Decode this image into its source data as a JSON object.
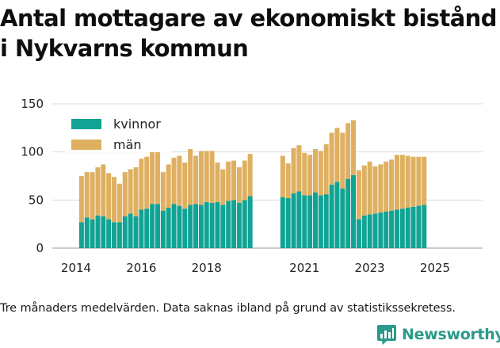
{
  "title_lines": [
    "Antal mottagare av ekonomiskt bistånd",
    "i Nykvarns kommun"
  ],
  "caption": "Tre månaders medelvärden. Data saknas ibland på grund av statistikssekretess.",
  "brand": {
    "name": "Newsworthy",
    "color": "#2a9a8a",
    "icon": "newsworthy-logo-icon"
  },
  "chart_data": {
    "type": "bar",
    "stacked": true,
    "grid": "horizontal",
    "legend_position": "top-left",
    "ylim": [
      0,
      150
    ],
    "yticks": [
      0,
      50,
      100,
      150
    ],
    "xticks": [
      "2014",
      "2016",
      "2018",
      "2021",
      "2023",
      "2025"
    ],
    "tick_months": [
      "2014-01",
      "2016-01",
      "2018-01",
      "2021-01",
      "2023-01",
      "2025-01"
    ],
    "categories": [
      "2014-03",
      "2014-05",
      "2014-07",
      "2014-09",
      "2014-11",
      "2015-01",
      "2015-03",
      "2015-05",
      "2015-07",
      "2015-09",
      "2015-11",
      "2016-01",
      "2016-03",
      "2016-05",
      "2016-07",
      "2016-09",
      "2016-11",
      "2017-01",
      "2017-03",
      "2017-05",
      "2017-07",
      "2017-09",
      "2017-11",
      "2018-01",
      "2018-03",
      "2018-05",
      "2018-07",
      "2018-09",
      "2018-11",
      "2019-01",
      "2019-03",
      "2019-05",
      "2020-05",
      "2020-07",
      "2020-09",
      "2020-11",
      "2021-01",
      "2021-03",
      "2021-05",
      "2021-07",
      "2021-09",
      "2021-11",
      "2022-01",
      "2022-03",
      "2022-05",
      "2022-07",
      "2022-09",
      "2022-11",
      "2023-01",
      "2023-03",
      "2023-05",
      "2023-07",
      "2023-09",
      "2023-11",
      "2024-01",
      "2024-03",
      "2024-05",
      "2024-07",
      "2024-09"
    ],
    "series": [
      {
        "name": "kvinnor",
        "color": "#11a394",
        "values": [
          27,
          32,
          30,
          34,
          33,
          30,
          27,
          27,
          33,
          36,
          33,
          40,
          41,
          46,
          46,
          39,
          42,
          46,
          44,
          41,
          45,
          46,
          45,
          48,
          47,
          48,
          45,
          49,
          50,
          47,
          50,
          54,
          53,
          52,
          57,
          59,
          55,
          55,
          58,
          55,
          56,
          66,
          69,
          62,
          72,
          76,
          30,
          34,
          35,
          36,
          37,
          38,
          39,
          40,
          41,
          42,
          43,
          44,
          45
        ]
      },
      {
        "name": "män",
        "color": "#dfb061",
        "values": [
          48,
          47,
          49,
          50,
          54,
          48,
          47,
          40,
          46,
          46,
          51,
          53,
          54,
          55,
          59,
          40,
          45,
          48,
          52,
          48,
          58,
          50,
          56,
          53,
          54,
          41,
          37,
          41,
          41,
          37,
          41,
          44,
          43,
          36,
          47,
          48,
          44,
          42,
          45,
          46,
          52,
          54,
          56,
          58,
          58,
          57,
          51,
          52,
          55,
          49,
          50,
          52,
          53,
          57,
          56,
          54,
          52,
          51,
          50
        ]
      }
    ]
  }
}
